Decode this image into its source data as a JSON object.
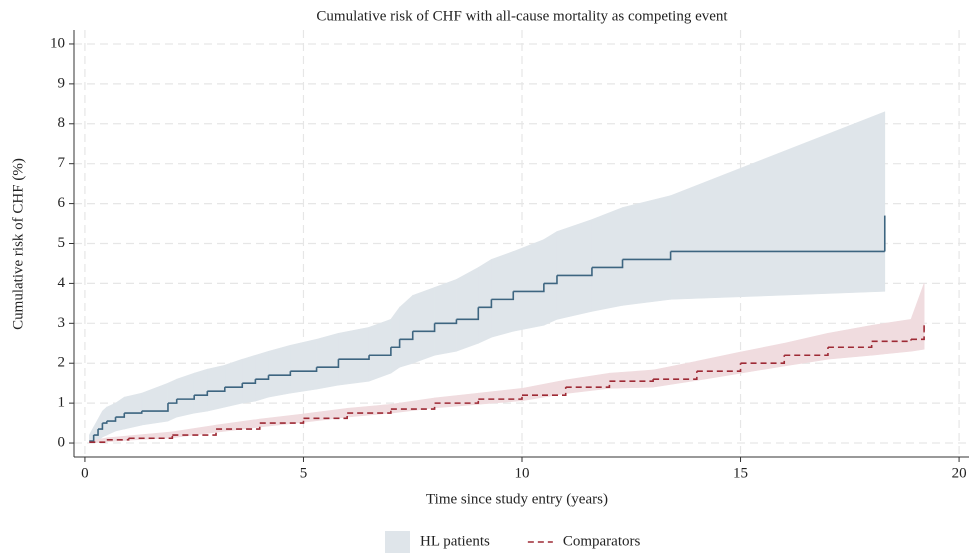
{
  "chart_data": {
    "type": "step",
    "title": "Cumulative risk of CHF with all-cause mortality as competing event",
    "x_label": "Time since study entry (years)",
    "y_label": "Cumulative risk of CHF (%)",
    "xlim": [
      -0.25,
      20.25
    ],
    "ylim": [
      -0.35,
      10.35
    ],
    "xticks": [
      0,
      5,
      10,
      15,
      20
    ],
    "yticks": [
      0,
      1,
      2,
      3,
      4,
      5,
      6,
      7,
      8,
      9,
      10
    ],
    "grid": true,
    "legend_position": "bottom",
    "series": [
      {
        "name": "HL patients",
        "color": "#3d6580",
        "band_color": "#dfe5ea",
        "dash": false,
        "legend_marker": "area",
        "x": [
          0.1,
          0.2,
          0.3,
          0.4,
          0.5,
          0.7,
          0.9,
          1.3,
          1.9,
          2.1,
          2.5,
          2.8,
          3.2,
          3.6,
          3.9,
          4.2,
          4.7,
          5.3,
          5.8,
          6.5,
          7.0,
          7.2,
          7.5,
          8.0,
          8.5,
          9.0,
          9.3,
          9.8,
          10.5,
          10.8,
          11.6,
          12.3,
          13.4,
          18.3,
          18.3
        ],
        "values": [
          0.05,
          0.2,
          0.35,
          0.5,
          0.55,
          0.65,
          0.75,
          0.8,
          1.0,
          1.1,
          1.2,
          1.3,
          1.4,
          1.5,
          1.6,
          1.7,
          1.8,
          1.9,
          2.1,
          2.2,
          2.4,
          2.6,
          2.8,
          3.0,
          3.1,
          3.4,
          3.6,
          3.8,
          4.0,
          4.2,
          4.4,
          4.6,
          4.8,
          4.8,
          5.7
        ],
        "lower": [
          0,
          0,
          0.05,
          0.15,
          0.2,
          0.3,
          0.35,
          0.45,
          0.55,
          0.65,
          0.75,
          0.8,
          0.9,
          1.0,
          1.05,
          1.15,
          1.25,
          1.35,
          1.45,
          1.55,
          1.75,
          1.9,
          2.0,
          2.2,
          2.3,
          2.5,
          2.65,
          2.8,
          2.95,
          3.1,
          3.3,
          3.45,
          3.6,
          3.8,
          3.8
        ],
        "upper": [
          0.2,
          0.4,
          0.6,
          0.8,
          0.9,
          1.0,
          1.15,
          1.25,
          1.5,
          1.6,
          1.75,
          1.85,
          1.95,
          2.1,
          2.2,
          2.3,
          2.45,
          2.6,
          2.75,
          2.9,
          3.1,
          3.4,
          3.7,
          3.9,
          4.1,
          4.4,
          4.6,
          4.8,
          5.1,
          5.3,
          5.6,
          5.9,
          6.2,
          8.3,
          8.3
        ]
      },
      {
        "name": "Comparators",
        "color": "#9e2a35",
        "band_color": "#f0dcdf",
        "dash": true,
        "legend_marker": "line",
        "x": [
          0.1,
          0.5,
          1.0,
          2,
          3,
          4,
          5,
          6,
          7,
          8,
          9,
          10,
          11,
          12,
          13,
          14,
          15,
          16,
          17,
          18,
          18.9,
          19.2,
          19.2
        ],
        "values": [
          0.02,
          0.08,
          0.12,
          0.2,
          0.35,
          0.5,
          0.62,
          0.75,
          0.85,
          1.0,
          1.1,
          1.2,
          1.4,
          1.55,
          1.6,
          1.8,
          2.0,
          2.2,
          2.4,
          2.55,
          2.6,
          2.8,
          3.05
        ],
        "lower": [
          0,
          0.03,
          0.07,
          0.13,
          0.27,
          0.4,
          0.52,
          0.65,
          0.75,
          0.88,
          0.97,
          1.06,
          1.24,
          1.37,
          1.4,
          1.57,
          1.75,
          1.93,
          2.1,
          2.2,
          2.3,
          2.35,
          2.4
        ],
        "upper": [
          0.05,
          0.13,
          0.18,
          0.28,
          0.45,
          0.6,
          0.73,
          0.87,
          0.97,
          1.13,
          1.25,
          1.37,
          1.58,
          1.75,
          1.83,
          2.05,
          2.28,
          2.5,
          2.75,
          2.95,
          3.1,
          4.0,
          4.0
        ]
      }
    ]
  }
}
